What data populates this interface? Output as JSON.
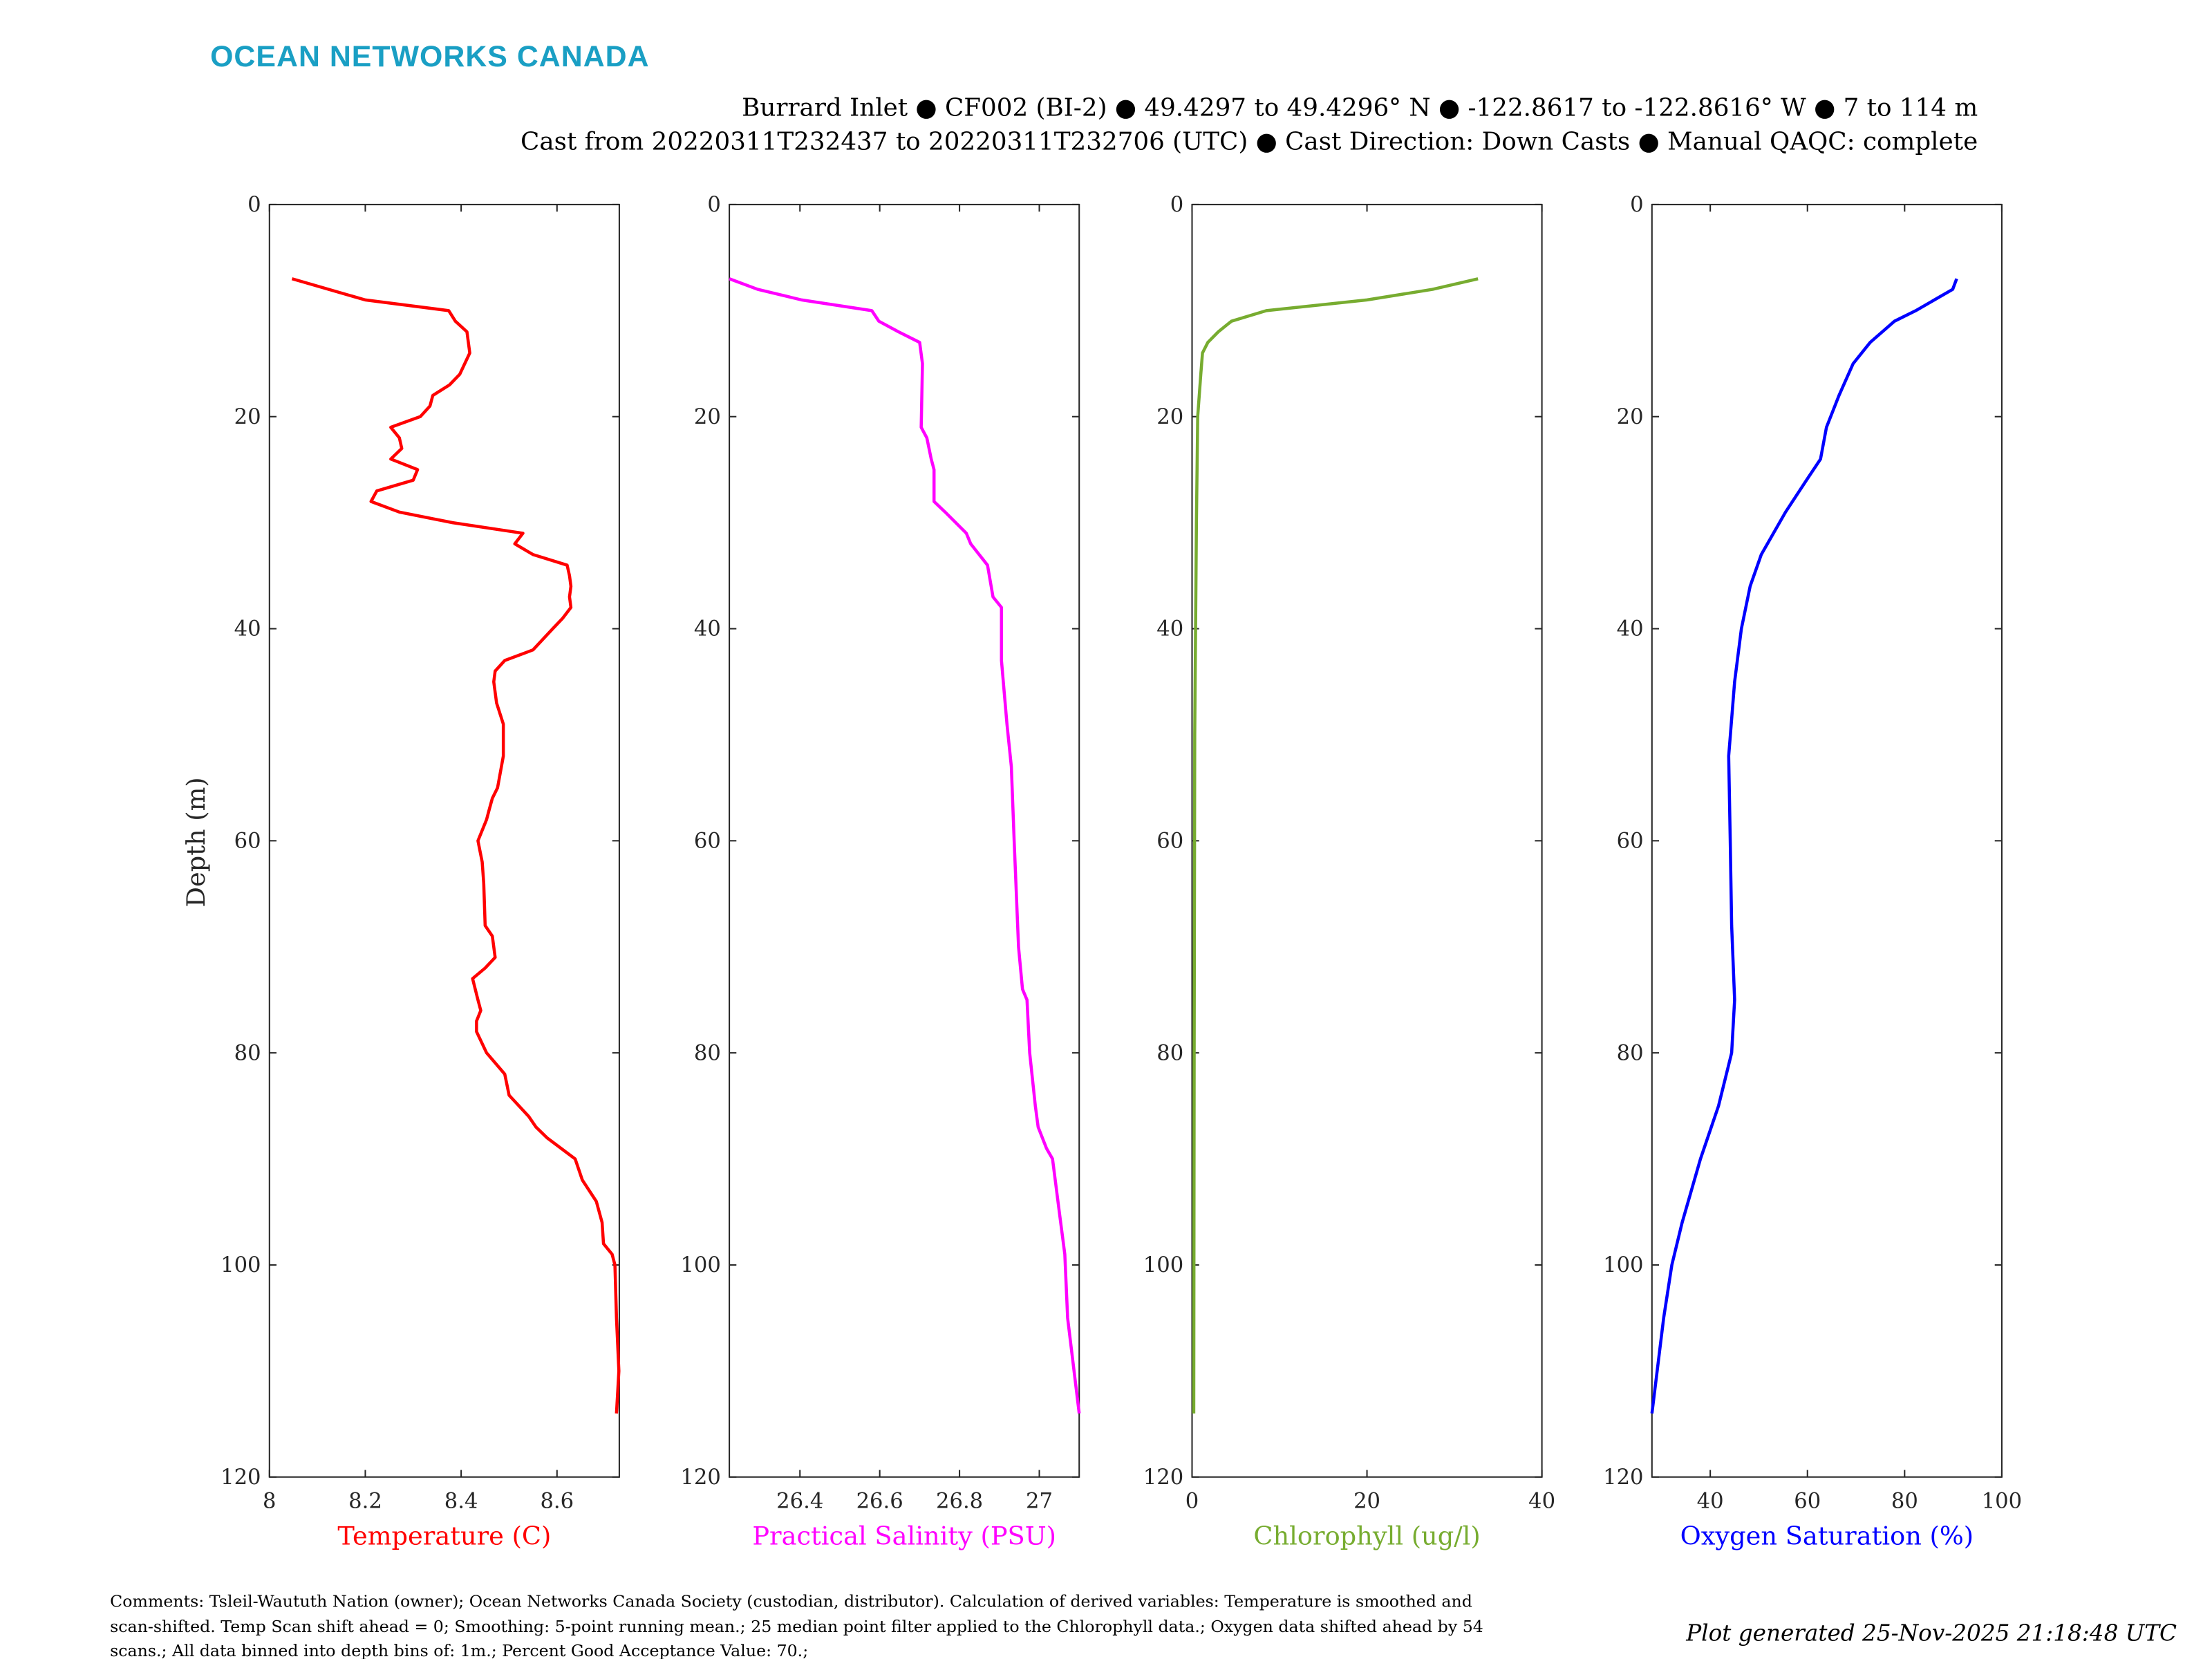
{
  "header": {
    "logo": "OCEAN NETWORKS CANADA",
    "title_line1": "Burrard Inlet ● CF002 (BI-2) ● 49.4297 to 49.4296° N ● -122.8617 to -122.8616° W ● 7 to 114 m",
    "title_line2": "Cast from 20220311T232437 to 20220311T232706 (UTC) ● Cast Direction: Down Casts ● Manual QAQC: complete"
  },
  "footer": {
    "comments": [
      "Comments: Tsleil-Waututh Nation (owner); Ocean Networks Canada Society (custodian, distributor). Calculation of derived variables: Temperature is smoothed and",
      "scan-shifted. Temp Scan shift ahead = 0; Smoothing: 5-point running mean.; 25 median point filter applied to the Chlorophyll data.; Oxygen data shifted ahead by 54",
      "scans.; All data binned into depth bins of: 1m.; Percent Good Acceptance Value: 70.;"
    ],
    "generated": "Plot generated 25-Nov-2025 21:18:48 UTC"
  },
  "chart_data": [
    {
      "type": "line",
      "xlabel": "Temperature (C)",
      "ylabel": "Depth (m)",
      "color": "#ff0000",
      "xlim": [
        8,
        8.73
      ],
      "ylim": [
        0,
        120
      ],
      "y_reversed": true,
      "xticks": [
        "8",
        "8.2",
        "8.4",
        "8.6"
      ],
      "xtick_values": [
        8,
        8.2,
        8.4,
        8.6
      ],
      "yticks": [
        "0",
        "20",
        "40",
        "60",
        "80",
        "100",
        "120"
      ],
      "depth": [
        7,
        9,
        10,
        11,
        12,
        14,
        16,
        17,
        18,
        19,
        20,
        21,
        22,
        23,
        24,
        25,
        26,
        27,
        28,
        29,
        30,
        31,
        32,
        33,
        34,
        35,
        36,
        37,
        38,
        39,
        40,
        42,
        43,
        44,
        45,
        47,
        49,
        52,
        55,
        56,
        57,
        58,
        60,
        62,
        64,
        68,
        69,
        71,
        72,
        73,
        75,
        76,
        77,
        78,
        80,
        82,
        84,
        86,
        87,
        88,
        90,
        92,
        94,
        96,
        98,
        99,
        100,
        105,
        110,
        114
      ],
      "values": [
        8.047,
        8.2,
        8.374,
        8.388,
        8.412,
        8.418,
        8.397,
        8.376,
        8.341,
        8.335,
        8.315,
        8.253,
        8.271,
        8.276,
        8.253,
        8.309,
        8.3,
        8.224,
        8.212,
        8.271,
        8.382,
        8.529,
        8.512,
        8.55,
        8.621,
        8.626,
        8.629,
        8.626,
        8.629,
        8.612,
        8.591,
        8.55,
        8.491,
        8.471,
        8.468,
        8.474,
        8.488,
        8.488,
        8.476,
        8.465,
        8.459,
        8.453,
        8.435,
        8.444,
        8.447,
        8.45,
        8.465,
        8.471,
        8.45,
        8.424,
        8.435,
        8.441,
        8.432,
        8.432,
        8.453,
        8.491,
        8.5,
        8.541,
        8.556,
        8.579,
        8.638,
        8.653,
        8.682,
        8.694,
        8.697,
        8.715,
        8.721,
        8.724,
        8.729,
        8.724
      ]
    },
    {
      "type": "line",
      "xlabel": "Practical Salinity (PSU)",
      "color": "#ff00ff",
      "xlim": [
        26.223,
        27.1
      ],
      "ylim": [
        0,
        120
      ],
      "y_reversed": true,
      "xticks": [
        "26.4",
        "26.6",
        "26.8",
        "27"
      ],
      "xtick_values": [
        26.4,
        26.6,
        26.8,
        27
      ],
      "yticks": [
        "0",
        "20",
        "40",
        "60",
        "80",
        "100",
        "120"
      ],
      "depth": [
        7,
        8,
        9,
        10,
        11,
        12,
        13,
        15,
        21,
        22,
        24,
        25,
        28,
        29,
        31,
        32,
        34,
        37,
        38,
        43,
        49,
        53,
        60,
        70,
        74,
        75,
        80,
        85,
        87,
        89,
        90,
        95,
        99,
        105,
        114
      ],
      "values": [
        26.223,
        26.294,
        26.404,
        26.58,
        26.598,
        26.647,
        26.7,
        26.707,
        26.704,
        26.718,
        26.729,
        26.736,
        26.736,
        26.764,
        26.817,
        26.828,
        26.87,
        26.884,
        26.905,
        26.905,
        26.919,
        26.93,
        26.937,
        26.948,
        26.958,
        26.969,
        26.976,
        26.99,
        26.997,
        27.018,
        27.033,
        27.05,
        27.064,
        27.071,
        27.1
      ]
    },
    {
      "type": "line",
      "xlabel": "Chlorophyll (ug/l)",
      "color": "#77ac30",
      "xlim": [
        0,
        40
      ],
      "ylim": [
        0,
        120
      ],
      "y_reversed": true,
      "xticks": [
        "0",
        "20",
        "40"
      ],
      "xtick_values": [
        0,
        20,
        40
      ],
      "yticks": [
        "0",
        "20",
        "40",
        "60",
        "80",
        "100",
        "120"
      ],
      "depth": [
        7,
        8,
        9,
        10,
        11,
        12,
        13,
        14,
        16,
        20,
        30,
        50,
        80,
        114
      ],
      "values": [
        32.7,
        27.5,
        20,
        8.5,
        4.5,
        3,
        1.8,
        1.2,
        1,
        0.65,
        0.5,
        0.3,
        0.25,
        0.2
      ]
    },
    {
      "type": "line",
      "xlabel": "Oxygen Saturation (%)",
      "color": "#0000ff",
      "xlim": [
        28,
        100
      ],
      "ylim": [
        0,
        120
      ],
      "y_reversed": true,
      "xticks": [
        "40",
        "60",
        "80",
        "100"
      ],
      "xtick_values": [
        40,
        60,
        80,
        100
      ],
      "yticks": [
        "0",
        "20",
        "40",
        "60",
        "80",
        "100",
        "120"
      ],
      "depth": [
        7,
        8,
        10,
        11,
        13,
        15,
        18,
        21,
        24,
        26,
        29,
        33,
        36,
        40,
        45,
        52,
        60,
        68,
        75,
        80,
        85,
        90,
        96,
        100,
        105,
        114
      ],
      "values": [
        90.7,
        89.9,
        82.3,
        77.9,
        72.9,
        69.4,
        66.5,
        63.9,
        62.7,
        59.8,
        55.5,
        50.5,
        48.2,
        46.4,
        45,
        43.8,
        44.1,
        44.4,
        45,
        44.4,
        41.7,
        38,
        34.2,
        32.1,
        30.4,
        28
      ]
    }
  ]
}
